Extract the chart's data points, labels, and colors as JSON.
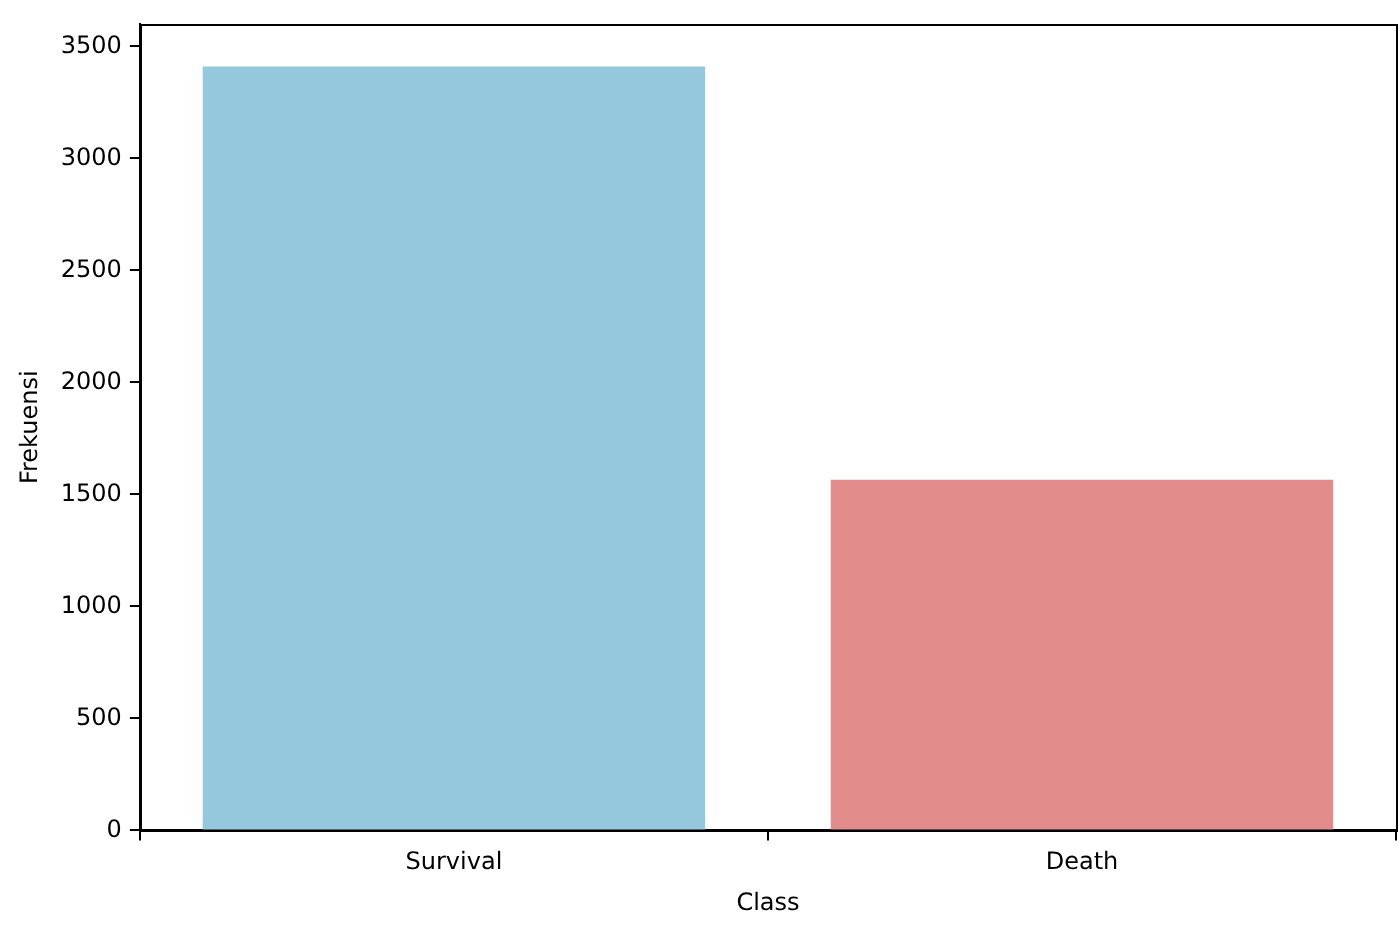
{
  "chart_data": {
    "type": "bar",
    "xlabel": "Class",
    "ylabel": "Frekuensi",
    "categories": [
      "Survival",
      "Death"
    ],
    "values": [
      3410,
      1565
    ],
    "colors": [
      "#95c8dd",
      "#e18b8b"
    ],
    "ylim": [
      0,
      3600
    ],
    "yticks": [
      0,
      500,
      1000,
      1500,
      2000,
      2500,
      3000,
      3500
    ],
    "grid": false,
    "legend": false
  }
}
